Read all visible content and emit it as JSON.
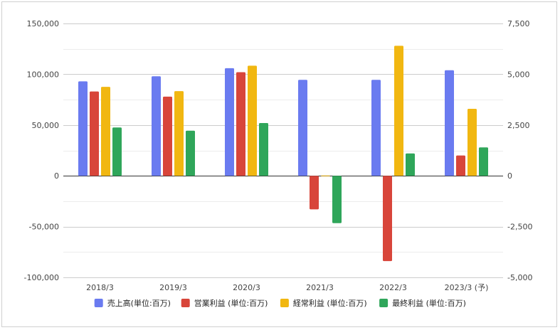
{
  "chart_data": {
    "type": "bar",
    "categories": [
      "2018/3",
      "2019/3",
      "2020/3",
      "2021/3",
      "2022/3",
      "2023/3 (予)"
    ],
    "series": [
      {
        "name": "売上高(単位:百万)",
        "axis": "left",
        "color": "#6a7bf0",
        "values": [
          93000,
          98000,
          106000,
          94500,
          94500,
          104000
        ]
      },
      {
        "name": "営業利益 (単位:百万)",
        "axis": "right",
        "color": "#d8453a",
        "values": [
          4150,
          3900,
          5100,
          -1650,
          -4200,
          1000
        ]
      },
      {
        "name": "経常利益 (単位:百万)",
        "axis": "right",
        "color": "#f1b711",
        "values": [
          4380,
          4170,
          5420,
          30,
          6400,
          3300
        ]
      },
      {
        "name": "最終利益 (単位:百万)",
        "axis": "right",
        "color": "#2fa65a",
        "values": [
          2380,
          2220,
          2600,
          -2330,
          1100,
          1400
        ]
      }
    ],
    "y_left": {
      "min": -100000,
      "max": 150000,
      "ticks": [
        "150,000",
        "100,000",
        "50,000",
        "0",
        "-50,000",
        "-100,000"
      ],
      "tick_values": [
        150000,
        100000,
        50000,
        0,
        -50000,
        -100000
      ]
    },
    "y_right": {
      "min": -5000,
      "max": 7500,
      "ticks": [
        "7,500",
        "5,000",
        "2,500",
        "0",
        "-2,500",
        "-5,000"
      ],
      "tick_values": [
        7500,
        5000,
        2500,
        0,
        -2500,
        -5000
      ]
    },
    "grid": true,
    "legend_position": "bottom",
    "title": "",
    "xlabel": "",
    "ylabel": ""
  }
}
